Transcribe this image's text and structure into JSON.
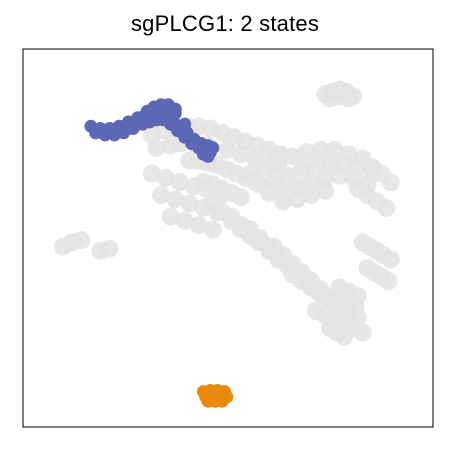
{
  "chart_data": {
    "type": "scatter",
    "title": "sgPLCG1: 2 states",
    "xlabel": "",
    "ylabel": "",
    "axes_ticks": false,
    "grid": false,
    "legend": "none",
    "series": [
      {
        "role": "background",
        "color": "#e3e3e3",
        "x": [
          -3.0,
          -2.5,
          -2.0,
          -1.5,
          -1.0,
          -0.5,
          0.0,
          0.5,
          1.0,
          1.5,
          2.0,
          2.5,
          -2.8,
          -2.2,
          -1.8,
          -1.2,
          -0.6,
          0.2,
          0.8,
          1.4,
          2.2,
          -1.4,
          -1.0,
          -0.6,
          -0.2,
          0.2,
          0.6,
          1.0,
          1.4,
          -0.8,
          -0.4,
          0.0,
          0.4,
          0.8,
          1.2,
          1.8,
          2.4,
          3.0,
          3.6,
          4.2,
          4.8,
          5.4,
          6.0,
          6.4,
          6.8,
          7.2,
          1.6,
          2.2,
          2.8,
          3.4,
          4.0,
          4.6,
          5.2,
          5.8,
          6.4,
          2.0,
          2.6,
          3.2,
          3.8,
          4.4,
          5.0,
          5.6,
          6.2,
          2.6,
          3.2,
          3.8,
          4.4,
          5.8,
          6.2,
          6.6,
          7.0,
          -0.4,
          0.0,
          0.4,
          0.8,
          1.2,
          1.6,
          2.0,
          2.4,
          0.4,
          0.8,
          1.2,
          1.6,
          2.0,
          2.4,
          2.8,
          3.2,
          3.6,
          1.2,
          1.6,
          2.0,
          2.4,
          2.8,
          3.2,
          3.6,
          4.0,
          4.4,
          2.2,
          2.6,
          3.0,
          3.4,
          3.8,
          4.2,
          4.6,
          5.0,
          3.0,
          3.4,
          3.8,
          4.2,
          4.6,
          5.0,
          5.4,
          5.8,
          4.0,
          4.4,
          4.8,
          5.2,
          5.6,
          6.0,
          6.0,
          6.3,
          6.6,
          6.9,
          7.2,
          6.2,
          6.5,
          6.8,
          7.1,
          -6.8,
          -6.4,
          -6.0,
          -5.2,
          -4.8,
          5.0,
          5.4,
          5.8,
          5.4,
          5.7,
          4.6,
          4.9,
          5.2,
          -3.0,
          -2.4,
          -1.8,
          -1.2,
          -0.6,
          0.0,
          -2.6,
          -2.0,
          -1.4,
          -0.8,
          -0.2,
          -2.2,
          -1.6,
          -1.0,
          -0.4
        ],
        "y": [
          6.4,
          6.6,
          6.7,
          6.8,
          6.8,
          6.7,
          6.5,
          6.3,
          6.1,
          5.9,
          5.7,
          5.5,
          5.8,
          5.9,
          6.0,
          6.0,
          5.9,
          5.7,
          5.5,
          5.3,
          5.0,
          5.2,
          5.2,
          5.1,
          5.0,
          4.8,
          4.6,
          4.4,
          4.2,
          4.2,
          4.1,
          3.9,
          3.7,
          3.5,
          4.6,
          4.9,
          5.1,
          5.4,
          5.6,
          5.7,
          5.7,
          5.5,
          5.3,
          4.9,
          4.6,
          4.2,
          4.1,
          4.3,
          4.5,
          4.8,
          5.0,
          5.1,
          5.1,
          4.9,
          4.6,
          3.7,
          3.8,
          4.0,
          4.2,
          4.4,
          4.5,
          4.4,
          4.1,
          3.3,
          3.4,
          3.6,
          3.8,
          3.9,
          3.6,
          3.3,
          3.0,
          3.2,
          2.8,
          2.4,
          2.0,
          1.7,
          1.4,
          1.1,
          0.8,
          2.6,
          2.2,
          1.8,
          1.4,
          1.0,
          0.6,
          0.3,
          0.0,
          -0.3,
          2.0,
          1.6,
          1.2,
          0.8,
          0.4,
          0.0,
          -0.4,
          -0.8,
          -1.1,
          1.2,
          0.8,
          0.4,
          0.0,
          -0.4,
          -0.8,
          -1.2,
          -1.5,
          -0.1,
          -0.4,
          -0.7,
          -1.0,
          -1.3,
          -1.6,
          -1.9,
          -2.1,
          -1.8,
          -2.0,
          -2.2,
          -2.4,
          -2.6,
          -2.8,
          1.4,
          1.2,
          1.0,
          0.8,
          0.6,
          0.2,
          0.0,
          -0.2,
          -0.4,
          1.2,
          1.4,
          1.5,
          1.0,
          1.1,
          -0.7,
          -0.9,
          -1.1,
          -1.4,
          -1.6,
          -2.6,
          -2.8,
          -3.0,
          4.6,
          4.4,
          4.2,
          4.0,
          3.8,
          3.6,
          3.6,
          3.4,
          3.2,
          3.0,
          2.8,
          2.6,
          2.4,
          2.2,
          2.0
        ]
      },
      {
        "role": "background-cluster",
        "color": "#e3e3e3",
        "x": [
          4.4,
          4.7,
          5.0,
          5.3,
          5.6,
          4.6,
          5.0,
          5.4
        ],
        "y": [
          8.3,
          8.4,
          8.5,
          8.4,
          8.2,
          8.1,
          8.2,
          8.1
        ]
      },
      {
        "role": "state-1",
        "color": "#5c68b5",
        "x": [
          -5.6,
          -5.2,
          -4.8,
          -4.4,
          -4.0,
          -3.6,
          -3.3,
          -3.0,
          -2.7,
          -2.4,
          -2.1,
          -1.8,
          -1.5,
          -1.2,
          -0.9,
          -0.6,
          -0.4,
          -5.4,
          -5.0,
          -4.6,
          -4.2,
          -3.8,
          -3.4,
          -3.1,
          -2.8,
          -2.5,
          -2.2,
          -1.9,
          -1.6,
          -1.3,
          -1.0,
          -0.7,
          -0.5,
          -2.9,
          -2.6,
          -2.3,
          -2.0,
          -3.2,
          -2.8,
          -2.4,
          -2.0,
          -1.6,
          -1.2,
          -0.8,
          -0.6
        ],
        "y": [
          6.8,
          6.7,
          6.7,
          6.8,
          7.0,
          7.2,
          7.3,
          7.4,
          7.4,
          7.3,
          7.1,
          6.8,
          6.5,
          6.2,
          6.0,
          5.9,
          5.8,
          6.5,
          6.4,
          6.4,
          6.5,
          6.7,
          6.9,
          7.0,
          7.1,
          7.1,
          6.9,
          6.6,
          6.3,
          6.0,
          5.8,
          5.7,
          5.6,
          7.7,
          7.8,
          7.8,
          7.6,
          7.5,
          7.6,
          7.6,
          7.4,
          6.9,
          6.1,
          5.5,
          5.4
        ]
      },
      {
        "role": "state-2",
        "color": "#e88a0e",
        "x": [
          -0.8,
          -0.5,
          -0.2,
          0.1,
          -0.7,
          -0.4,
          -0.1,
          0.2,
          -0.6,
          -0.3,
          0.0
        ],
        "y": [
          -5.55,
          -5.5,
          -5.5,
          -5.55,
          -5.8,
          -5.75,
          -5.75,
          -5.8,
          -6.0,
          -6.0,
          -6.0
        ]
      }
    ],
    "xlim": [
      -8.5,
      9.0
    ],
    "ylim": [
      -7.2,
      10.4
    ]
  }
}
